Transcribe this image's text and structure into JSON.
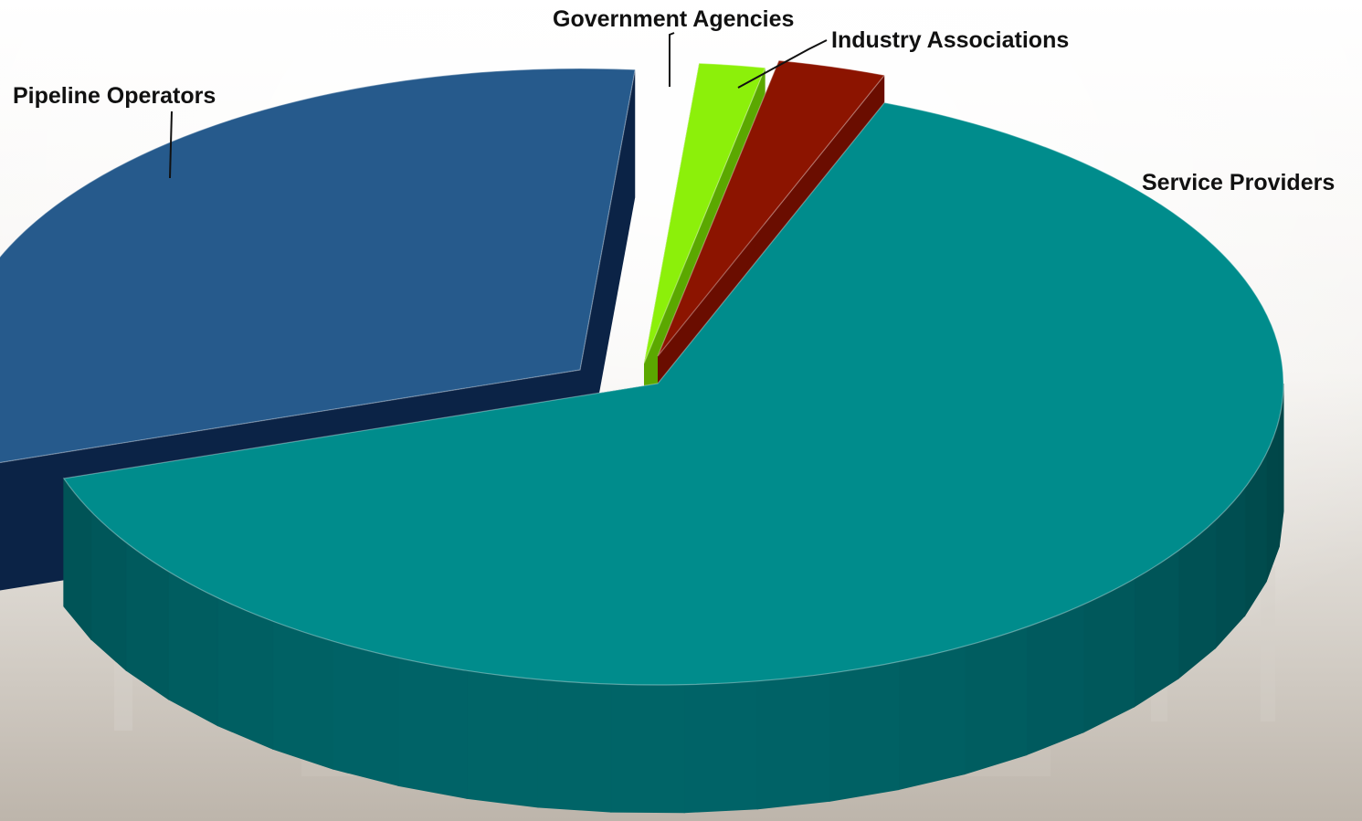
{
  "chart_data": {
    "type": "pie",
    "style": "3d-exploded",
    "title": "",
    "slices": [
      {
        "label": "Service Providers",
        "value": 64.0,
        "color": "#008c8c",
        "side_color": "#00575a"
      },
      {
        "label": "Pipeline Operators",
        "value": 31.5,
        "color": "#265a8c",
        "side_color": "#0b2346"
      },
      {
        "label": "Government Agencies",
        "value": 1.7,
        "color": "#8cf00a",
        "side_color": "#5ba800"
      },
      {
        "label": "Industry Associations",
        "value": 2.8,
        "color": "#8c1400",
        "side_color": "#6a0d00"
      }
    ]
  }
}
